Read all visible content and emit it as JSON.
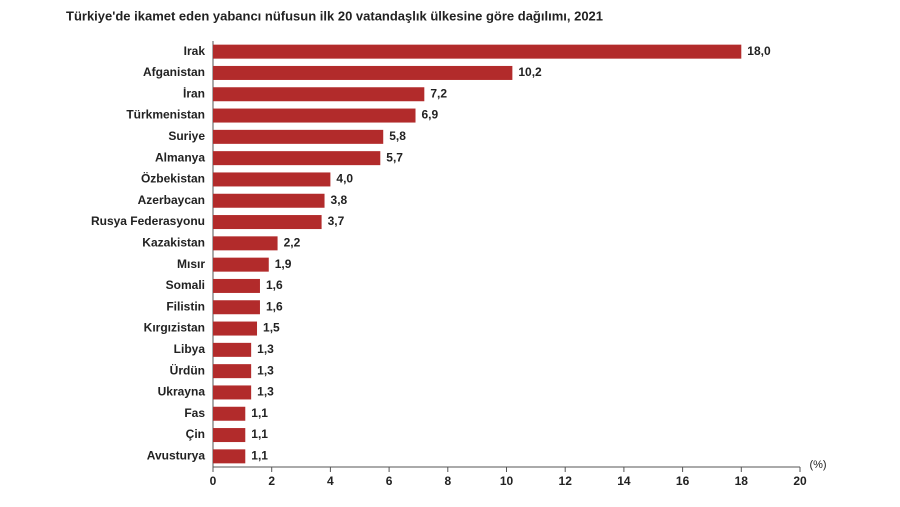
{
  "chart_data": {
    "type": "bar",
    "orientation": "horizontal",
    "title": "Türkiye'de ikamet eden yabancı nüfusun ilk 20 vatandaşlık ülkesine göre dağılımı, 2021",
    "x_label": "(%)",
    "categories": [
      "Irak",
      "Afganistan",
      "İran",
      "Türkmenistan",
      "Suriye",
      "Almanya",
      "Özbekistan",
      "Azerbaycan",
      "Rusya Federasyonu",
      "Kazakistan",
      "Mısır",
      "Somali",
      "Filistin",
      "Kırgızistan",
      "Libya",
      "Ürdün",
      "Ukrayna",
      "Fas",
      "Çin",
      "Avusturya"
    ],
    "values": [
      18.0,
      10.2,
      7.2,
      6.9,
      5.8,
      5.7,
      4.0,
      3.8,
      3.7,
      2.2,
      1.9,
      1.6,
      1.6,
      1.5,
      1.3,
      1.3,
      1.3,
      1.1,
      1.1,
      1.1
    ],
    "value_labels": [
      "18,0",
      "10,2",
      "7,2",
      "6,9",
      "5,8",
      "5,7",
      "4,0",
      "3,8",
      "3,7",
      "2,2",
      "1,9",
      "1,6",
      "1,6",
      "1,5",
      "1,3",
      "1,3",
      "1,3",
      "1,1",
      "1,1",
      "1,1"
    ],
    "color": "#b22b2b",
    "xlim": [
      0,
      20
    ],
    "xticks": [
      0,
      2,
      4,
      6,
      8,
      10,
      12,
      14,
      16,
      18,
      20
    ]
  }
}
